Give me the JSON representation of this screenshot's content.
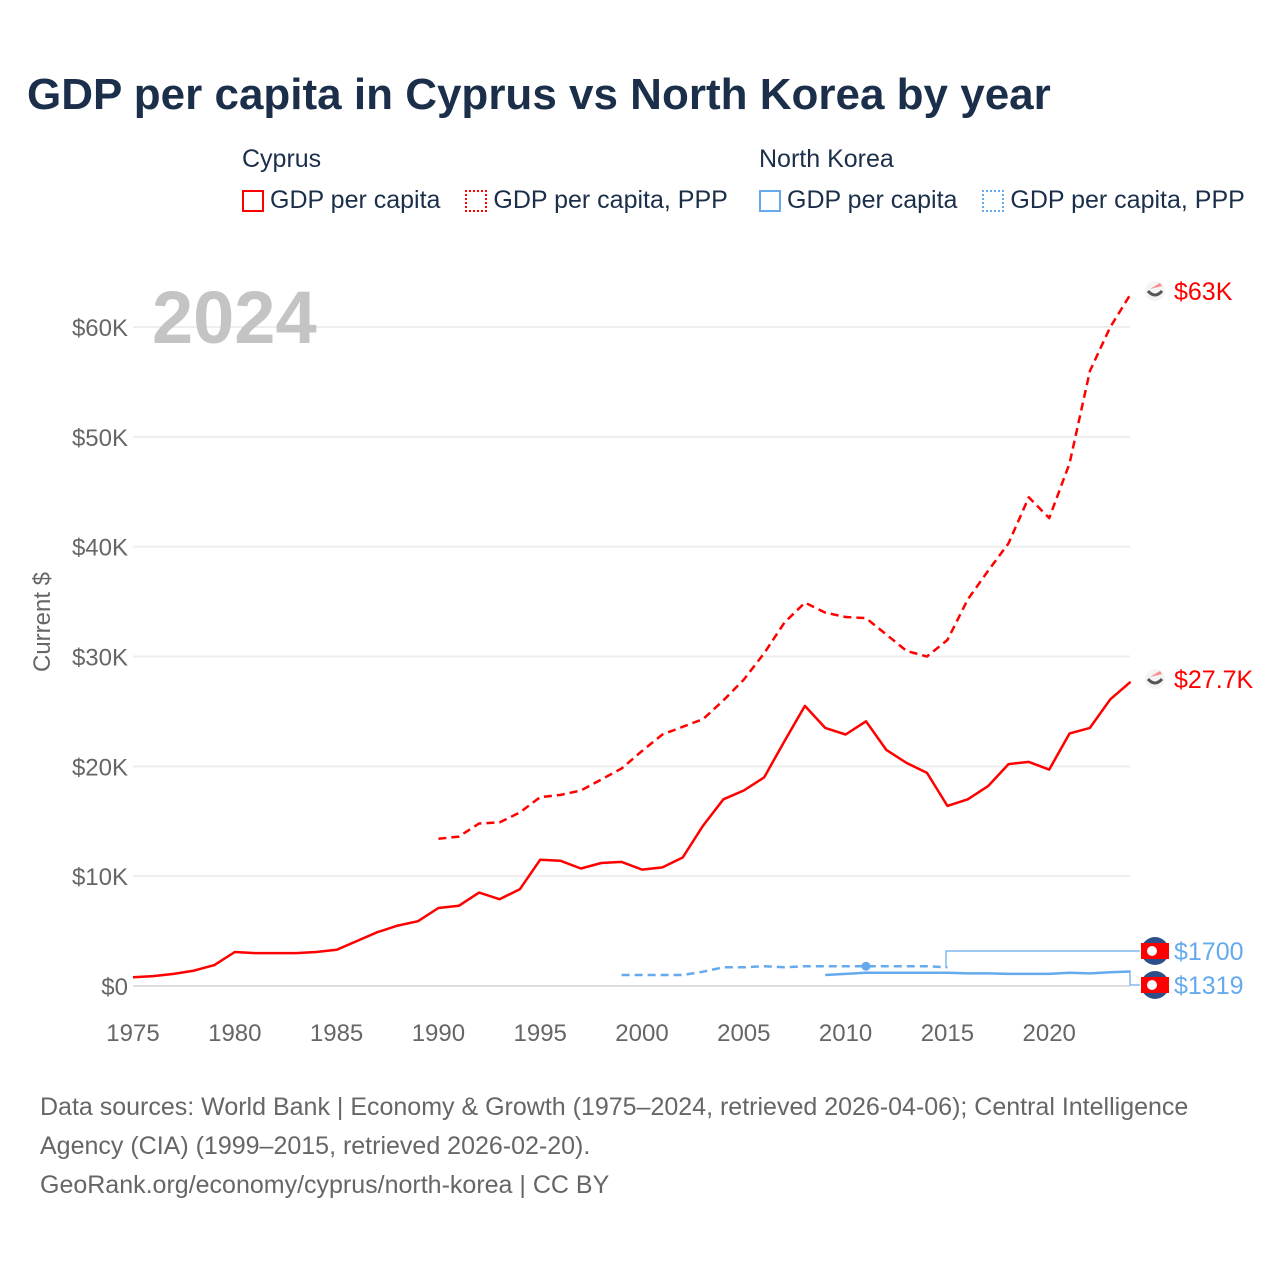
{
  "title": "GDP per capita in Cyprus vs North Korea by year",
  "legend": {
    "groups": [
      {
        "name": "Cyprus",
        "color": "#ff0000",
        "items": [
          "GDP per capita",
          "GDP per capita, PPP"
        ]
      },
      {
        "name": "North Korea",
        "color": "#66aaee",
        "items": [
          "GDP per capita",
          "GDP per capita, PPP"
        ]
      }
    ]
  },
  "year_watermark": "2024",
  "chart_data": {
    "type": "line",
    "title": "GDP per capita in Cyprus vs North Korea by year",
    "xlabel": "",
    "ylabel": "Current $",
    "xlim": [
      1975,
      2024
    ],
    "ylim": [
      0,
      63000
    ],
    "x_ticks": [
      "1975",
      "1980",
      "1985",
      "1990",
      "1995",
      "2000",
      "2005",
      "2010",
      "2015",
      "2020"
    ],
    "y_ticks": [
      "$0",
      "$10K",
      "$20K",
      "$30K",
      "$40K",
      "$50K",
      "$60K"
    ],
    "grid": true,
    "series": [
      {
        "name": "Cyprus GDP per capita",
        "style": "solid",
        "color": "#ff0000",
        "start": 1975,
        "values": [
          800,
          900,
          1100,
          1400,
          1900,
          3100,
          3000,
          3000,
          3000,
          3100,
          3300,
          4100,
          4900,
          5500,
          5900,
          7100,
          7300,
          8500,
          7900,
          8800,
          11500,
          11400,
          10700,
          11200,
          11300,
          10600,
          10800,
          11700,
          14600,
          17000,
          17800,
          19000,
          22300,
          25500,
          23500,
          22900,
          24100,
          21500,
          20300,
          19400,
          16400,
          17000,
          18200,
          20200,
          20400,
          19700,
          23000,
          23500,
          26100,
          27700
        ],
        "end_label": "$27.7K"
      },
      {
        "name": "Cyprus GDP per capita, PPP",
        "style": "dashed",
        "color": "#ff0000",
        "start": 1990,
        "values": [
          13400,
          13600,
          14800,
          14900,
          15800,
          17200,
          17400,
          17800,
          18800,
          19800,
          21400,
          22900,
          23600,
          24300,
          26000,
          27900,
          30300,
          33100,
          34900,
          34000,
          33600,
          33500,
          32000,
          30500,
          30000,
          31500,
          35200,
          37800,
          40300,
          44500,
          42600,
          47600,
          56000,
          60000,
          63000
        ],
        "end_label": "$63K"
      },
      {
        "name": "North Korea GDP per capita",
        "style": "solid",
        "color": "#66aaee",
        "start": 2009,
        "values": [
          1000,
          1100,
          1200,
          1200,
          1200,
          1200,
          1200,
          1150,
          1150,
          1100,
          1100,
          1100,
          1200,
          1150,
          1250,
          1319
        ],
        "end_label": "$1319"
      },
      {
        "name": "North Korea GDP per capita, PPP",
        "style": "dashed",
        "color": "#66aaee",
        "start": 1999,
        "values": [
          1000,
          1000,
          1000,
          1000,
          1300,
          1700,
          1700,
          1800,
          1700,
          1800,
          1800,
          1800,
          1800,
          1800,
          1800,
          1800,
          1700
        ],
        "end_label": "$1700"
      }
    ]
  },
  "footer": {
    "sources": "Data sources: World Bank | Economy & Growth (1975–2024, retrieved 2026-04-06); Central Intelligence Agency (CIA) (1999–2015, retrieved 2026-02-20).",
    "credit": "GeoRank.org/economy/cyprus/north-korea | CC BY"
  }
}
